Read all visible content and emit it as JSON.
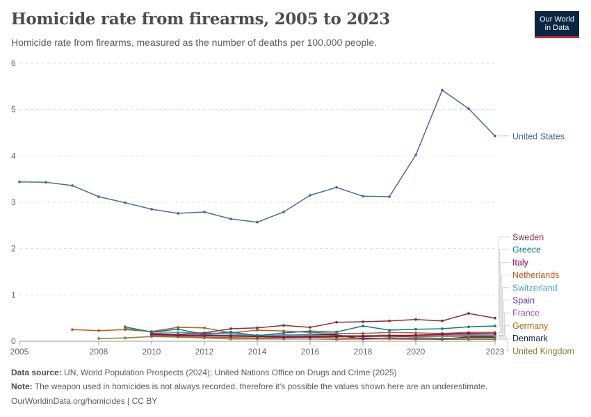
{
  "header": {
    "title": "Homicide rate from firearms, 2005 to 2023",
    "subtitle": "Homicide rate from firearms, measured as the number of deaths per 100,000 people.",
    "logo_line1": "Our World",
    "logo_line2": "in Data"
  },
  "footer": {
    "source_label": "Data source:",
    "source_text": "UN, World Population Prospects (2024); United Nations Office on Drugs and Crime (2025)",
    "note_label": "Note:",
    "note_text": "The weapon used in homicides is not always recorded, therefore it's possible the values shown here are an underestimate.",
    "link_text": "OurWorldinData.org/homicides | CC BY"
  },
  "chart_data": {
    "type": "line",
    "title": "Homicide rate from firearms, 2005 to 2023",
    "subtitle": "Homicide rate from firearms, measured as the number of deaths per 100,000 people.",
    "xlabel": "",
    "ylabel": "",
    "xlim": [
      2005,
      2023
    ],
    "ylim": [
      0,
      6
    ],
    "x_ticks": [
      2005,
      2008,
      2010,
      2012,
      2014,
      2016,
      2018,
      2020,
      2023
    ],
    "y_ticks": [
      0,
      1,
      2,
      3,
      4,
      5,
      6
    ],
    "grid": "horizontal dashed",
    "legend": "right, end labels",
    "series": [
      {
        "name": "United States",
        "color": "#4c6a9c",
        "values": [
          [
            2005,
            3.44
          ],
          [
            2006,
            3.43
          ],
          [
            2007,
            3.36
          ],
          [
            2008,
            3.12
          ],
          [
            2009,
            2.99
          ],
          [
            2010,
            2.85
          ],
          [
            2011,
            2.76
          ],
          [
            2012,
            2.79
          ],
          [
            2013,
            2.64
          ],
          [
            2014,
            2.57
          ],
          [
            2015,
            2.79
          ],
          [
            2016,
            3.15
          ],
          [
            2017,
            3.32
          ],
          [
            2018,
            3.13
          ],
          [
            2019,
            3.12
          ],
          [
            2020,
            4.02
          ],
          [
            2021,
            5.42
          ],
          [
            2022,
            5.02
          ],
          [
            2023,
            4.43
          ]
        ]
      },
      {
        "name": "Sweden",
        "color": "#883039",
        "values": [
          [
            2010,
            0.17
          ],
          [
            2011,
            0.15
          ],
          [
            2012,
            0.18
          ],
          [
            2013,
            0.27
          ],
          [
            2014,
            0.29
          ],
          [
            2015,
            0.34
          ],
          [
            2016,
            0.3
          ],
          [
            2017,
            0.41
          ],
          [
            2018,
            0.42
          ],
          [
            2019,
            0.44
          ],
          [
            2020,
            0.47
          ],
          [
            2021,
            0.44
          ],
          [
            2022,
            0.6
          ],
          [
            2023,
            0.5
          ]
        ]
      },
      {
        "name": "Greece",
        "color": "#00847e",
        "values": [
          [
            2009,
            0.31
          ],
          [
            2010,
            0.2
          ],
          [
            2011,
            0.26
          ],
          [
            2012,
            0.15
          ],
          [
            2013,
            0.2
          ],
          [
            2014,
            0.12
          ],
          [
            2015,
            0.18
          ],
          [
            2016,
            0.22
          ],
          [
            2017,
            0.2
          ],
          [
            2018,
            0.33
          ],
          [
            2019,
            0.24
          ],
          [
            2020,
            0.26
          ],
          [
            2021,
            0.27
          ],
          [
            2022,
            0.31
          ],
          [
            2023,
            0.33
          ]
        ]
      },
      {
        "name": "Italy",
        "color": "#970046",
        "values": [
          [
            2010,
            0.15
          ],
          [
            2011,
            0.13
          ],
          [
            2012,
            0.12
          ],
          [
            2013,
            0.11
          ],
          [
            2014,
            0.1
          ],
          [
            2015,
            0.09
          ],
          [
            2016,
            0.09
          ],
          [
            2017,
            0.1
          ],
          [
            2018,
            0.11
          ],
          [
            2019,
            0.12
          ],
          [
            2020,
            0.13
          ],
          [
            2021,
            0.15
          ],
          [
            2022,
            0.17
          ],
          [
            2023,
            0.16
          ]
        ]
      },
      {
        "name": "Netherlands",
        "color": "#c05917",
        "values": [
          [
            2007,
            0.25
          ],
          [
            2008,
            0.23
          ],
          [
            2009,
            0.25
          ],
          [
            2010,
            0.21
          ],
          [
            2011,
            0.3
          ],
          [
            2012,
            0.29
          ],
          [
            2013,
            0.18
          ],
          [
            2014,
            0.24
          ],
          [
            2015,
            0.22
          ],
          [
            2016,
            0.19
          ],
          [
            2017,
            0.17
          ],
          [
            2018,
            0.17
          ],
          [
            2019,
            0.19
          ],
          [
            2020,
            0.18
          ],
          [
            2021,
            0.17
          ],
          [
            2022,
            0.19
          ],
          [
            2023,
            0.19
          ]
        ]
      },
      {
        "name": "Switzerland",
        "color": "#38aaba",
        "values": [
          [
            2009,
            0.28
          ],
          [
            2010,
            0.2
          ],
          [
            2011,
            0.19
          ],
          [
            2012,
            0.18
          ],
          [
            2013,
            0.16
          ],
          [
            2014,
            0.13
          ],
          [
            2015,
            0.12
          ],
          [
            2016,
            0.14
          ],
          [
            2017,
            0.1
          ],
          [
            2018,
            0.12
          ],
          [
            2019,
            0.13
          ],
          [
            2020,
            0.11
          ],
          [
            2021,
            0.1
          ],
          [
            2022,
            0.12
          ],
          [
            2023,
            0.12
          ]
        ]
      },
      {
        "name": "Spain",
        "color": "#6d3e91",
        "values": [
          [
            2010,
            0.16
          ],
          [
            2011,
            0.13
          ],
          [
            2012,
            0.14
          ],
          [
            2013,
            0.12
          ],
          [
            2014,
            0.1
          ],
          [
            2015,
            0.1
          ],
          [
            2016,
            0.11
          ],
          [
            2017,
            0.12
          ],
          [
            2018,
            0.1
          ],
          [
            2019,
            0.11
          ],
          [
            2020,
            0.09
          ],
          [
            2021,
            0.1
          ],
          [
            2022,
            0.11
          ],
          [
            2023,
            0.11
          ]
        ]
      },
      {
        "name": "France",
        "color": "#a2559c",
        "values": [
          [
            2010,
            0.13
          ],
          [
            2011,
            0.14
          ],
          [
            2012,
            0.12
          ],
          [
            2013,
            0.13
          ],
          [
            2014,
            0.12
          ],
          [
            2015,
            0.14
          ],
          [
            2016,
            0.13
          ],
          [
            2017,
            0.12
          ],
          [
            2018,
            0.12
          ],
          [
            2019,
            0.13
          ],
          [
            2020,
            0.12
          ],
          [
            2021,
            0.13
          ],
          [
            2022,
            0.14
          ],
          [
            2023,
            0.13
          ]
        ]
      },
      {
        "name": "Germany",
        "color": "#b16214",
        "values": [
          [
            2010,
            0.12
          ],
          [
            2011,
            0.11
          ],
          [
            2012,
            0.09
          ],
          [
            2013,
            0.08
          ],
          [
            2014,
            0.07
          ],
          [
            2015,
            0.08
          ],
          [
            2016,
            0.09
          ],
          [
            2017,
            0.07
          ],
          [
            2018,
            0.07
          ],
          [
            2019,
            0.06
          ],
          [
            2020,
            0.06
          ],
          [
            2021,
            0.06
          ],
          [
            2022,
            0.07
          ],
          [
            2023,
            0.07
          ]
        ]
      },
      {
        "name": "Denmark",
        "color": "#0b2545",
        "values": [
          [
            2014,
            0.13
          ],
          [
            2015,
            0.12
          ],
          [
            2016,
            0.15
          ],
          [
            2017,
            0.14
          ],
          [
            2018,
            0.05
          ],
          [
            2019,
            0.07
          ],
          [
            2020,
            0.06
          ],
          [
            2021,
            0.05
          ],
          [
            2022,
            0.09
          ],
          [
            2023,
            0.09
          ]
        ]
      },
      {
        "name": "United Kingdom",
        "color": "#8c7b33",
        "values": [
          [
            2008,
            0.06
          ],
          [
            2009,
            0.07
          ],
          [
            2010,
            0.1
          ],
          [
            2011,
            0.09
          ],
          [
            2012,
            0.07
          ],
          [
            2013,
            0.05
          ],
          [
            2014,
            0.05
          ],
          [
            2015,
            0.05
          ],
          [
            2016,
            0.05
          ],
          [
            2017,
            0.04
          ],
          [
            2018,
            0.05
          ],
          [
            2019,
            0.05
          ],
          [
            2020,
            0.04
          ],
          [
            2021,
            0.04
          ],
          [
            2022,
            0.04
          ],
          [
            2023,
            0.04
          ]
        ]
      }
    ]
  }
}
